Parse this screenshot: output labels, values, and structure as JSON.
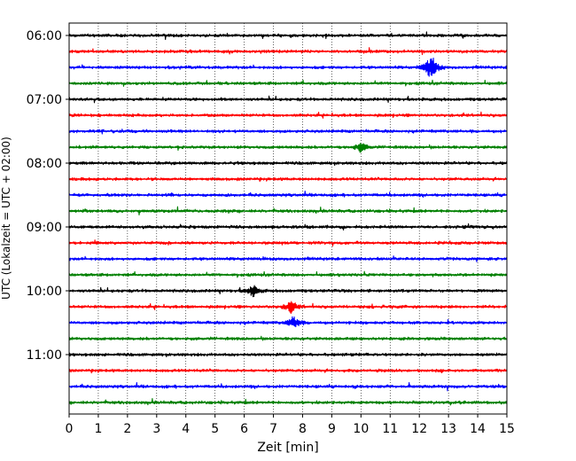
{
  "chart_data": {
    "type": "line",
    "title": "",
    "xlabel": "Zeit  [min]",
    "ylabel": "UTC (Lokalzeit = UTC + 02:00)",
    "xlim": [
      0,
      15
    ],
    "x_ticks": [
      "0",
      "1",
      "2",
      "3",
      "4",
      "5",
      "6",
      "7",
      "8",
      "9",
      "10",
      "11",
      "12",
      "13",
      "14",
      "15"
    ],
    "y_ticks": [
      "06:00",
      "07:00",
      "08:00",
      "09:00",
      "10:00",
      "11:00"
    ],
    "grid": "vertical-dotted",
    "trace_interval_minutes": 15,
    "start_time": "06:00",
    "colors": [
      "#000000",
      "#ff0000",
      "#0000ff",
      "#008000"
    ],
    "traces": [
      {
        "time": "06:00",
        "color": "#000000"
      },
      {
        "time": "06:15",
        "color": "#ff0000"
      },
      {
        "time": "06:30",
        "color": "#0000ff",
        "event_min": 12.4,
        "event_amp": 1.0
      },
      {
        "time": "06:45",
        "color": "#008000"
      },
      {
        "time": "07:00",
        "color": "#000000"
      },
      {
        "time": "07:15",
        "color": "#ff0000"
      },
      {
        "time": "07:30",
        "color": "#0000ff"
      },
      {
        "time": "07:45",
        "color": "#008000",
        "event_min": 10.0,
        "event_amp": 0.35
      },
      {
        "time": "08:00",
        "color": "#000000"
      },
      {
        "time": "08:15",
        "color": "#ff0000"
      },
      {
        "time": "08:30",
        "color": "#0000ff"
      },
      {
        "time": "08:45",
        "color": "#008000"
      },
      {
        "time": "09:00",
        "color": "#000000"
      },
      {
        "time": "09:15",
        "color": "#ff0000"
      },
      {
        "time": "09:30",
        "color": "#0000ff"
      },
      {
        "time": "09:45",
        "color": "#008000"
      },
      {
        "time": "10:00",
        "color": "#000000",
        "event_min": 6.3,
        "event_amp": 0.4
      },
      {
        "time": "10:15",
        "color": "#ff0000",
        "event_min": 7.6,
        "event_amp": 0.45
      },
      {
        "time": "10:30",
        "color": "#0000ff",
        "event_min": 7.7,
        "event_amp": 0.45
      },
      {
        "time": "10:45",
        "color": "#008000"
      },
      {
        "time": "11:00",
        "color": "#000000"
      },
      {
        "time": "11:15",
        "color": "#ff0000"
      },
      {
        "time": "11:30",
        "color": "#0000ff"
      },
      {
        "time": "11:45",
        "color": "#008000"
      }
    ]
  }
}
